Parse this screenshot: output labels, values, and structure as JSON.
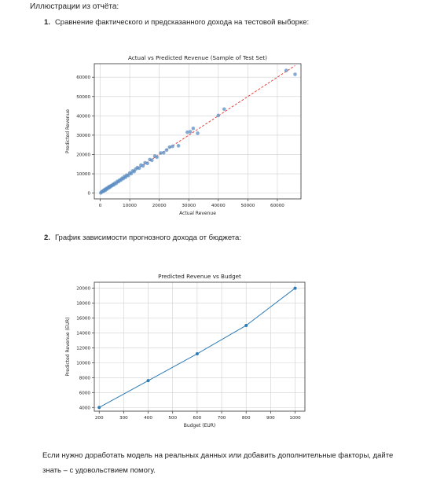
{
  "document": {
    "intro": "Иллюстрации из отчёта:",
    "items": [
      {
        "number": "1.",
        "text": "Сравнение фактического и предсказанного дохода на тестовой выборке:"
      },
      {
        "number": "2.",
        "text": "График зависимости прогнозного дохода от бюджета:"
      }
    ],
    "outro": "Если нужно доработать модель на реальных данных или добавить дополнительные факторы, дайте знать – с удовольствием помогу."
  },
  "chart_data": [
    {
      "type": "scatter",
      "title": "Actual vs Predicted Revenue (Sample of Test Set)",
      "xlabel": "Actual Revenue",
      "ylabel": "Predicted Revenue",
      "xlim": [
        -2000,
        68000
      ],
      "ylim": [
        -3000,
        67000
      ],
      "xticks": [
        0,
        10000,
        20000,
        30000,
        40000,
        50000,
        60000
      ],
      "yticks": [
        0,
        10000,
        20000,
        30000,
        40000,
        50000,
        60000
      ],
      "grid": true,
      "reference_line": {
        "from": [
          0,
          0
        ],
        "to": [
          66000,
          66000
        ],
        "color": "#e8302a",
        "style": "dashed"
      },
      "point_color": "#5b8fc4",
      "points": [
        [
          200,
          100
        ],
        [
          500,
          600
        ],
        [
          800,
          900
        ],
        [
          1000,
          1200
        ],
        [
          1300,
          1100
        ],
        [
          1500,
          1800
        ],
        [
          1800,
          1600
        ],
        [
          2000,
          2300
        ],
        [
          2300,
          2100
        ],
        [
          2600,
          2900
        ],
        [
          2900,
          2700
        ],
        [
          3100,
          3400
        ],
        [
          3400,
          3200
        ],
        [
          3700,
          3900
        ],
        [
          4000,
          3800
        ],
        [
          4300,
          4500
        ],
        [
          4600,
          4300
        ],
        [
          5000,
          5200
        ],
        [
          5400,
          5000
        ],
        [
          5800,
          6100
        ],
        [
          6200,
          5900
        ],
        [
          6600,
          6800
        ],
        [
          7000,
          6700
        ],
        [
          7400,
          7700
        ],
        [
          7800,
          7500
        ],
        [
          8200,
          8600
        ],
        [
          8600,
          8200
        ],
        [
          9000,
          9300
        ],
        [
          9500,
          9100
        ],
        [
          10000,
          10400
        ],
        [
          10500,
          10100
        ],
        [
          11000,
          11500
        ],
        [
          11500,
          11200
        ],
        [
          12000,
          12400
        ],
        [
          12600,
          13200
        ],
        [
          13200,
          12900
        ],
        [
          13800,
          14500
        ],
        [
          14500,
          14100
        ],
        [
          15200,
          15700
        ],
        [
          16000,
          15400
        ],
        [
          16800,
          17400
        ],
        [
          17500,
          17000
        ],
        [
          18500,
          19200
        ],
        [
          19200,
          18600
        ],
        [
          20500,
          20800
        ],
        [
          21500,
          20900
        ],
        [
          22500,
          22300
        ],
        [
          23500,
          23800
        ],
        [
          24500,
          24200
        ],
        [
          26500,
          24500
        ],
        [
          29500,
          31500
        ],
        [
          30500,
          31800
        ],
        [
          31500,
          33500
        ],
        [
          33000,
          31000
        ],
        [
          40000,
          40200
        ],
        [
          42000,
          43500
        ],
        [
          63000,
          63500
        ],
        [
          66000,
          61500
        ]
      ]
    },
    {
      "type": "line",
      "title": "Predicted Revenue vs Budget",
      "xlabel": "Budget (EUR)",
      "ylabel": "Predicted Revenue (EUR)",
      "xlim": [
        180,
        1040
      ],
      "ylim": [
        3500,
        20800
      ],
      "xticks": [
        200,
        300,
        400,
        500,
        600,
        700,
        800,
        900,
        1000
      ],
      "yticks": [
        4000,
        6000,
        8000,
        10000,
        12000,
        14000,
        16000,
        18000,
        20000
      ],
      "grid": true,
      "line_color": "#2c7bb6",
      "x": [
        200,
        400,
        600,
        800,
        1000
      ],
      "y": [
        4000,
        7600,
        11200,
        15000,
        20000
      ]
    }
  ]
}
